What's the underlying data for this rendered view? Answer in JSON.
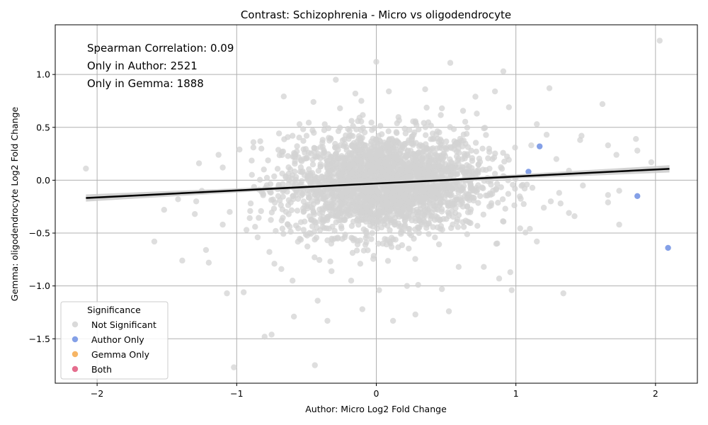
{
  "chart_data": {
    "type": "scatter",
    "title": "Contrast: Schizophrenia - Micro vs oligodendrocyte",
    "xlabel": "Author: Micro Log2 Fold Change",
    "ylabel": "Gemma: oligodendrocyte Log2 Fold Change",
    "xlim": [
      -2.3,
      2.3
    ],
    "ylim": [
      -1.92,
      1.47
    ],
    "xticks": [
      -2,
      -1,
      0,
      1,
      2
    ],
    "xtick_labels": [
      "−2",
      "−1",
      "0",
      "1",
      "2"
    ],
    "yticks": [
      -1.5,
      -1.0,
      -0.5,
      0.0,
      0.5,
      1.0
    ],
    "ytick_labels": [
      "−1.5",
      "−1.0",
      "−0.5",
      "0.0",
      "0.5",
      "1.0"
    ],
    "grid": true,
    "annotations": [
      "Spearman Correlation: 0.09",
      "Only in Author: 2521",
      "Only in Gemma: 1888"
    ],
    "legend": {
      "title": "Significance",
      "placement": "bottom-left",
      "entries": [
        {
          "label": "Not Significant",
          "color": "#d3d3d3"
        },
        {
          "label": "Author Only",
          "color": "#6f8fe3"
        },
        {
          "label": "Gemma Only",
          "color": "#f5a84a"
        },
        {
          "label": "Both",
          "color": "#e0557a"
        }
      ]
    },
    "regression": {
      "slope": 0.066,
      "intercept": -0.031,
      "x_range": [
        -2.08,
        2.1
      ],
      "color": "#000000",
      "band_color": "#c8c8c8"
    },
    "series": [
      {
        "name": "Not Significant",
        "color": "#d3d3d3",
        "points": [
          [
            -2.08,
            0.11
          ],
          [
            -1.59,
            -0.58
          ],
          [
            -1.52,
            -0.28
          ],
          [
            -1.39,
            -0.76
          ],
          [
            -1.27,
            0.16
          ],
          [
            -1.22,
            -0.66
          ],
          [
            -1.2,
            -0.78
          ],
          [
            -1.07,
            -1.07
          ],
          [
            -1.02,
            -1.77
          ],
          [
            -0.95,
            -1.06
          ],
          [
            -0.8,
            -1.48
          ],
          [
            -0.75,
            -1.46
          ],
          [
            -0.44,
            -1.75
          ],
          [
            -0.45,
            0.74
          ],
          [
            -0.29,
            0.95
          ],
          [
            0.0,
            1.12
          ],
          [
            0.53,
            1.11
          ],
          [
            0.91,
            1.03
          ],
          [
            2.03,
            1.32
          ],
          [
            1.62,
            0.72
          ],
          [
            1.24,
            0.87
          ],
          [
            1.34,
            -1.07
          ],
          [
            -0.1,
            -1.22
          ],
          [
            0.12,
            -1.33
          ],
          [
            0.28,
            -1.27
          ],
          [
            0.52,
            -1.24
          ],
          [
            -0.35,
            -1.33
          ],
          [
            -0.42,
            -1.14
          ],
          [
            1.97,
            0.17
          ],
          [
            1.87,
            0.28
          ],
          [
            1.86,
            0.39
          ],
          [
            1.72,
            0.24
          ],
          [
            1.66,
            0.33
          ],
          [
            1.74,
            -0.1
          ],
          [
            1.74,
            -0.42
          ],
          [
            1.66,
            -0.14
          ],
          [
            1.66,
            -0.21
          ],
          [
            1.48,
            -0.05
          ],
          [
            1.46,
            0.38
          ],
          [
            1.47,
            0.42
          ],
          [
            1.38,
            0.09
          ],
          [
            1.38,
            -0.31
          ],
          [
            1.31,
            -0.12
          ],
          [
            1.29,
            0.2
          ],
          [
            1.22,
            0.43
          ],
          [
            1.15,
            0.53
          ],
          [
            1.11,
            0.33
          ],
          [
            1.15,
            -0.58
          ],
          [
            1.1,
            -0.46
          ],
          [
            0.96,
            -0.87
          ],
          [
            0.97,
            -1.04
          ],
          [
            0.88,
            -0.93
          ],
          [
            0.85,
            0.84
          ],
          [
            0.95,
            0.69
          ],
          [
            -1.1,
            0.12
          ],
          [
            -1.13,
            0.24
          ],
          [
            -0.98,
            0.29
          ],
          [
            -0.88,
            0.36
          ],
          [
            -0.93,
            -0.47
          ],
          [
            -0.85,
            -0.54
          ],
          [
            -1.05,
            -0.3
          ],
          [
            -1.1,
            -0.42
          ],
          [
            -0.73,
            -0.79
          ],
          [
            -0.68,
            -0.84
          ],
          [
            -0.6,
            -0.95
          ],
          [
            -0.59,
            -1.29
          ],
          [
            -0.6,
            0.42
          ],
          [
            -0.55,
            0.53
          ],
          [
            -0.26,
            0.68
          ],
          [
            -0.15,
            0.82
          ],
          [
            0.09,
            0.84
          ],
          [
            0.35,
            0.86
          ],
          [
            0.47,
            0.68
          ],
          [
            0.71,
            0.79
          ],
          [
            0.72,
            0.63
          ],
          [
            0.02,
            -1.04
          ],
          [
            0.3,
            -0.99
          ],
          [
            0.47,
            -1.03
          ],
          [
            0.59,
            -0.82
          ],
          [
            0.77,
            -0.82
          ],
          [
            -1.29,
            -0.2
          ],
          [
            -1.3,
            -0.32
          ],
          [
            -1.25,
            -0.1
          ],
          [
            -1.42,
            -0.18
          ],
          [
            1.2,
            -0.26
          ],
          [
            1.25,
            -0.2
          ],
          [
            1.32,
            -0.22
          ],
          [
            1.42,
            -0.34
          ],
          [
            -0.18,
            -0.95
          ],
          [
            0.22,
            -1.0
          ]
        ],
        "cloud": {
          "count": 2600,
          "x_mean": 0.05,
          "x_sd": 0.36,
          "y_mean": -0.03,
          "y_sd": 0.24,
          "x_range": [
            -0.95,
            1.15
          ],
          "y_range": [
            -1.0,
            0.8
          ]
        }
      },
      {
        "name": "Author Only",
        "color": "#6f8fe3",
        "points": [
          [
            1.17,
            0.32
          ],
          [
            1.09,
            0.08
          ],
          [
            1.87,
            -0.15
          ],
          [
            2.09,
            -0.64
          ]
        ]
      },
      {
        "name": "Gemma Only",
        "color": "#f5a84a",
        "points": []
      },
      {
        "name": "Both",
        "color": "#e0557a",
        "points": []
      }
    ]
  }
}
